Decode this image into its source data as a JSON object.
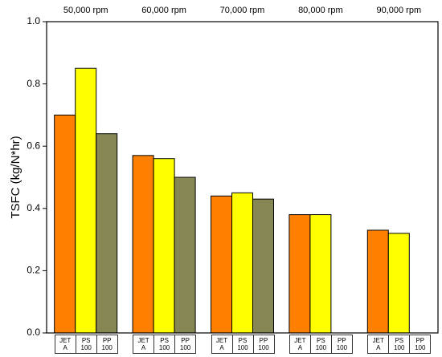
{
  "chart_data": {
    "type": "bar",
    "y_label": "TSFC (kg/N*hr)",
    "categories": [
      "50,000 rpm",
      "60,000 rpm",
      "70,000 rpm",
      "80,000 rpm",
      "90,000 rpm"
    ],
    "series": [
      {
        "name": "JET A",
        "color": "#ff8000",
        "values": [
          0.7,
          0.57,
          0.44,
          0.38,
          0.33
        ]
      },
      {
        "name": "PS 100",
        "color": "#ffff00",
        "values": [
          0.85,
          0.56,
          0.45,
          0.38,
          0.32
        ]
      },
      {
        "name": "PP 100",
        "color": "#878755",
        "values": [
          0.64,
          0.5,
          0.43,
          null,
          null
        ]
      }
    ],
    "ylim": [
      0,
      1
    ],
    "yticks": [
      {
        "value": 0,
        "label": "0.0"
      },
      0.2,
      0.4,
      0.6,
      0.8,
      {
        "value": 1,
        "label": "1.0"
      }
    ]
  }
}
